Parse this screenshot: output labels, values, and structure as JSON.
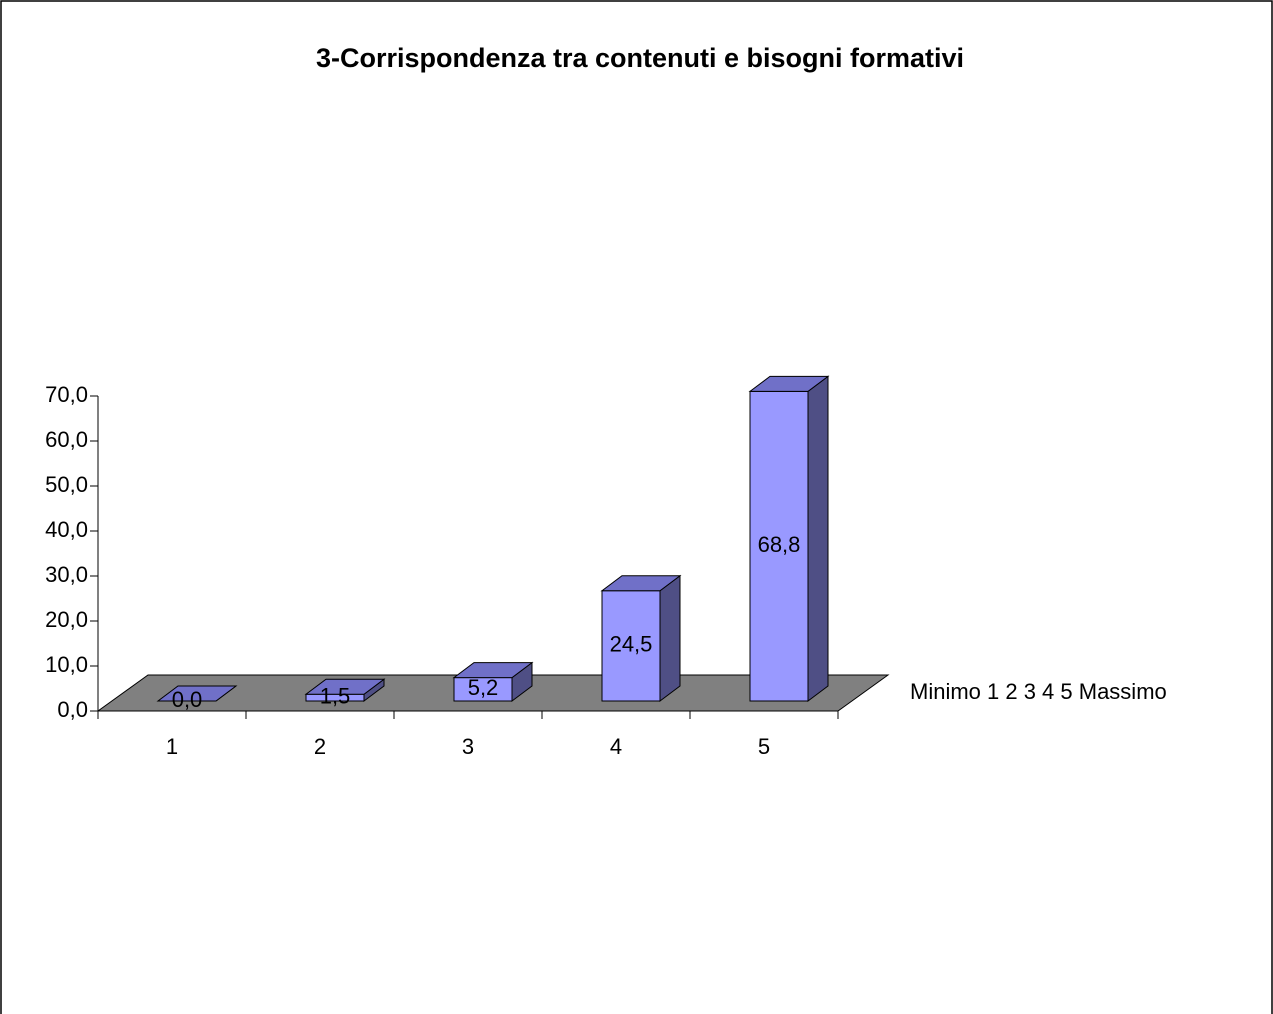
{
  "chart_data": {
    "type": "bar3d",
    "title": "3-Corrispondenza tra contenuti e bisogni formativi",
    "categories": [
      "1",
      "2",
      "3",
      "4",
      "5"
    ],
    "series": [
      {
        "name": "Minimo 1 2 3 4 5 Massimo",
        "color": "#9999ff",
        "values": [
          0,
          1.5,
          5.2,
          24.5,
          68.8
        ],
        "value_labels": [
          "0,0",
          "1,5",
          "5,2",
          "24,5",
          "68,8"
        ]
      }
    ],
    "ylim": [
      0,
      70
    ],
    "yticks": [
      {
        "value": 0,
        "label": "0,0"
      },
      {
        "value": 10,
        "label": "10,0"
      },
      {
        "value": 20,
        "label": "20,0"
      },
      {
        "value": 30,
        "label": "30,0"
      },
      {
        "value": 40,
        "label": "40,0"
      },
      {
        "value": 50,
        "label": "50,0"
      },
      {
        "value": 60,
        "label": "60,0"
      },
      {
        "value": 70,
        "label": "70,0"
      }
    ]
  }
}
